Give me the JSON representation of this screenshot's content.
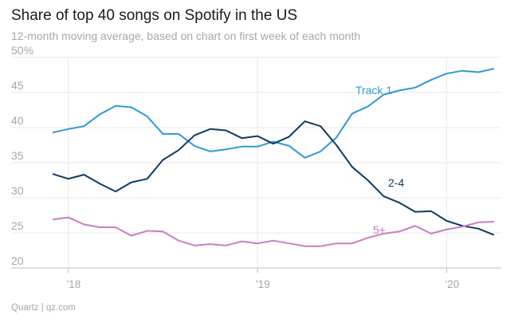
{
  "title": "Share of top 40 songs on Spotify in the US",
  "subtitle": "12-month moving average, based on chart on first week of each month",
  "source": "Quartz | qz.com",
  "chart_data": {
    "type": "line",
    "title": "Share of top 40 songs on Spotify in the US",
    "subtitle": "12-month moving average, based on chart on first week of each month",
    "xlabel": "",
    "ylabel": "",
    "ylim": [
      20,
      50
    ],
    "xlim": [
      2017.87,
      2020.27
    ],
    "grid": true,
    "y_ticks": [
      {
        "value": 50,
        "label": "50%"
      },
      {
        "value": 45,
        "label": "45"
      },
      {
        "value": 40,
        "label": "40"
      },
      {
        "value": 35,
        "label": "35"
      },
      {
        "value": 30,
        "label": "30"
      },
      {
        "value": 25,
        "label": "25"
      },
      {
        "value": 20,
        "label": "20"
      }
    ],
    "x_ticks": [
      {
        "value": 2018.0,
        "label": "'18"
      },
      {
        "value": 2019.0,
        "label": "'19"
      },
      {
        "value": 2020.0,
        "label": "'20"
      }
    ],
    "x": [
      2017.917,
      2018.0,
      2018.083,
      2018.167,
      2018.25,
      2018.333,
      2018.417,
      2018.5,
      2018.583,
      2018.667,
      2018.75,
      2018.833,
      2018.917,
      2019.0,
      2019.083,
      2019.167,
      2019.25,
      2019.333,
      2019.417,
      2019.5,
      2019.583,
      2019.667,
      2019.75,
      2019.833,
      2019.917,
      2020.0,
      2020.083,
      2020.167,
      2020.25
    ],
    "series": [
      {
        "name": "Track 1",
        "color": "#2e9ad4",
        "values": [
          39.3,
          39.8,
          40.2,
          41.9,
          43.1,
          42.9,
          41.6,
          39.1,
          39.1,
          37.4,
          36.6,
          36.9,
          37.3,
          37.3,
          38.0,
          37.4,
          35.7,
          36.6,
          38.6,
          42.0,
          43.0,
          44.7,
          45.3,
          45.7,
          46.8,
          47.7,
          48.1,
          47.9,
          48.4
        ]
      },
      {
        "name": "2-4",
        "color": "#0f3a5f",
        "values": [
          33.4,
          32.7,
          33.3,
          32.0,
          30.9,
          32.2,
          32.7,
          35.4,
          36.8,
          38.9,
          39.8,
          39.6,
          38.5,
          38.8,
          37.7,
          38.7,
          40.9,
          40.2,
          37.5,
          34.4,
          32.5,
          30.2,
          29.3,
          28.0,
          28.1,
          26.7,
          26.0,
          25.6,
          24.7
        ]
      },
      {
        "name": "5+",
        "color": "#c77fbd",
        "values": [
          26.9,
          27.2,
          26.2,
          25.8,
          25.8,
          24.6,
          25.3,
          25.2,
          23.9,
          23.2,
          23.4,
          23.2,
          23.8,
          23.5,
          23.9,
          23.5,
          23.1,
          23.1,
          23.5,
          23.5,
          24.3,
          24.9,
          25.2,
          26.0,
          24.9,
          25.5,
          25.9,
          26.5,
          26.6
        ]
      }
    ],
    "series_labels": [
      "Track 1",
      "2-4",
      "5+"
    ]
  }
}
